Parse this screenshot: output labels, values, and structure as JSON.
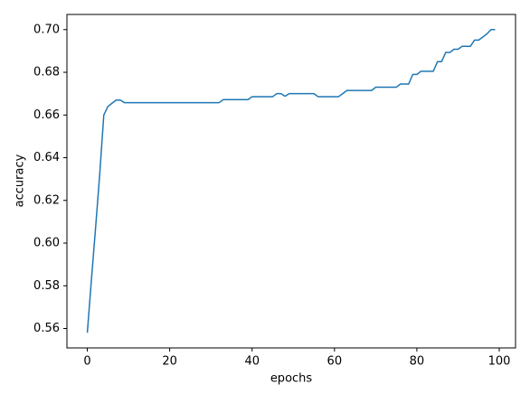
{
  "chart_data": {
    "type": "line",
    "xlabel": "epochs",
    "ylabel": "accuracy",
    "x": [
      0,
      1,
      2,
      3,
      4,
      5,
      6,
      7,
      8,
      9,
      10,
      11,
      12,
      13,
      14,
      15,
      16,
      17,
      18,
      19,
      20,
      21,
      22,
      23,
      24,
      25,
      26,
      27,
      28,
      29,
      30,
      31,
      32,
      33,
      34,
      35,
      36,
      37,
      38,
      39,
      40,
      41,
      42,
      43,
      44,
      45,
      46,
      47,
      48,
      49,
      50,
      51,
      52,
      53,
      54,
      55,
      56,
      57,
      58,
      59,
      60,
      61,
      62,
      63,
      64,
      65,
      66,
      67,
      68,
      69,
      70,
      71,
      72,
      73,
      74,
      75,
      76,
      77,
      78,
      79,
      80,
      81,
      82,
      83,
      84,
      85,
      86,
      87,
      88,
      89,
      90,
      91,
      92,
      93,
      94,
      95,
      96,
      97,
      98,
      99
    ],
    "values": [
      0.558,
      0.583,
      0.607,
      0.632,
      0.66,
      0.664,
      0.6655,
      0.667,
      0.667,
      0.6658,
      0.6658,
      0.6658,
      0.6658,
      0.6658,
      0.6658,
      0.6658,
      0.6658,
      0.6658,
      0.6658,
      0.6658,
      0.6658,
      0.6658,
      0.6658,
      0.6658,
      0.6658,
      0.6658,
      0.6658,
      0.6658,
      0.6658,
      0.6658,
      0.6658,
      0.6658,
      0.6658,
      0.6672,
      0.6672,
      0.6672,
      0.6672,
      0.6672,
      0.6672,
      0.6672,
      0.6686,
      0.6686,
      0.6686,
      0.6686,
      0.6686,
      0.6686,
      0.67,
      0.67,
      0.6688,
      0.67,
      0.67,
      0.67,
      0.67,
      0.67,
      0.67,
      0.67,
      0.6686,
      0.6686,
      0.6686,
      0.6686,
      0.6686,
      0.6686,
      0.67,
      0.6715,
      0.6715,
      0.6715,
      0.6715,
      0.6715,
      0.6715,
      0.6715,
      0.673,
      0.673,
      0.673,
      0.673,
      0.673,
      0.673,
      0.6745,
      0.6745,
      0.6745,
      0.679,
      0.679,
      0.6805,
      0.6805,
      0.6805,
      0.6805,
      0.685,
      0.685,
      0.6893,
      0.6893,
      0.6908,
      0.6908,
      0.6922,
      0.6922,
      0.6922,
      0.6951,
      0.6951,
      0.6965,
      0.698,
      0.7,
      0.7
    ],
    "color": "#1f77b4",
    "xlim": [
      -4.95,
      103.95
    ],
    "ylim": [
      0.5509,
      0.7071
    ],
    "xticks": [
      0,
      20,
      40,
      60,
      80,
      100
    ],
    "yticks": [
      {
        "value": 0.56,
        "label": "0.56"
      },
      {
        "value": 0.58,
        "label": "0.58"
      },
      {
        "value": 0.6,
        "label": "0.60"
      },
      {
        "value": 0.62,
        "label": "0.62"
      },
      {
        "value": 0.64,
        "label": "0.64"
      },
      {
        "value": 0.66,
        "label": "0.66"
      },
      {
        "value": 0.68,
        "label": "0.68"
      },
      {
        "value": 0.7,
        "label": "0.70"
      }
    ]
  }
}
